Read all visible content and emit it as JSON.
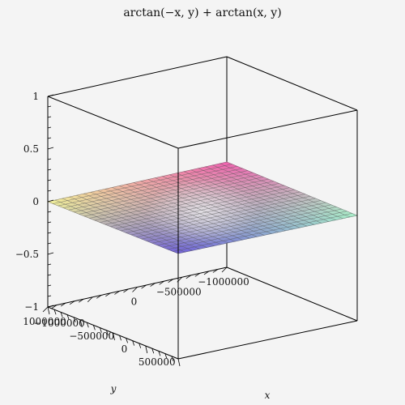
{
  "chart_data": {
    "type": "surface3d",
    "title": "arctan(−x, y) + arctan(x, y)",
    "xlabel": "x",
    "ylabel": "y",
    "zlabel": "",
    "xlim": [
      -1000000,
      1000000
    ],
    "ylim": [
      -1000000,
      1000000
    ],
    "zlim": [
      -1,
      1
    ],
    "x_ticks": [
      {
        "value": -1000000,
        "label": "−1000000"
      },
      {
        "value": -500000,
        "label": "−500000"
      },
      {
        "value": 0,
        "label": "0"
      },
      {
        "value": 500000,
        "label": "500000"
      }
    ],
    "y_ticks": [
      {
        "value": -1000000,
        "label": "−1000000"
      },
      {
        "value": -500000,
        "label": "−500000"
      },
      {
        "value": 0,
        "label": "0"
      },
      {
        "value": 1000000,
        "label": "1000000"
      }
    ],
    "z_ticks": [
      {
        "value": 1,
        "label": "1"
      },
      {
        "value": 0.5,
        "label": "0.5"
      },
      {
        "value": 0,
        "label": "0"
      },
      {
        "value": -0.5,
        "label": "−0.5"
      },
      {
        "value": -1,
        "label": "−1"
      }
    ],
    "surface_z": 0,
    "grid_divisions": 25,
    "colors": {
      "corner_x_min_y_min": "#f060b0",
      "corner_x_max_y_min": "#a8f0c8",
      "corner_x_min_y_max": "#f0f098",
      "corner_x_max_y_max": "#7060d8",
      "center": "#e8e8ea"
    }
  }
}
